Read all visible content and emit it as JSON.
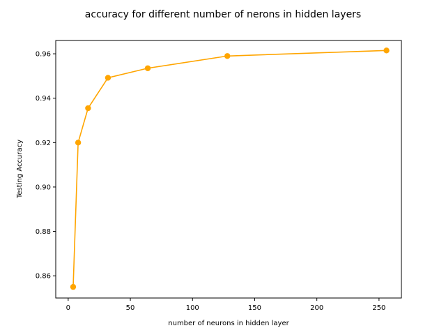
{
  "chart_data": {
    "type": "line",
    "title": "accuracy for different number of nerons in hidden layers",
    "xlabel": "number of neurons in hidden layer",
    "ylabel": "Testing Accuracy",
    "xlim": [
      -10,
      268
    ],
    "ylim": [
      0.85,
      0.966
    ],
    "xticks": [
      0,
      50,
      100,
      150,
      200,
      250
    ],
    "yticks": [
      0.86,
      0.88,
      0.9,
      0.92,
      0.94,
      0.96
    ],
    "grid": false,
    "legend": "none",
    "series": [
      {
        "color": "#FFA500",
        "marker": "circle",
        "x": [
          4,
          8,
          16,
          32,
          64,
          128,
          256
        ],
        "y": [
          0.855,
          0.92,
          0.9355,
          0.9492,
          0.9535,
          0.959,
          0.9615
        ]
      }
    ]
  }
}
